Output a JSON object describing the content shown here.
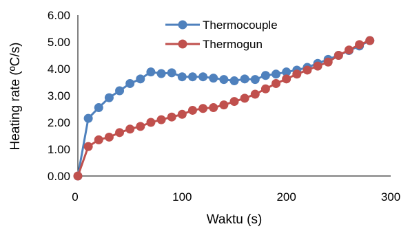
{
  "chart_data": {
    "type": "line",
    "title": "",
    "xlabel": "Waktu (s)",
    "ylabel": "Heating rate (ºC/s)",
    "xlim": [
      0,
      300
    ],
    "ylim": [
      0,
      6
    ],
    "x_ticks": [
      0,
      100,
      200,
      300
    ],
    "x_tick_labels": [
      "0",
      "100",
      "200",
      "300"
    ],
    "y_ticks": [
      0,
      1,
      2,
      3,
      4,
      5,
      6
    ],
    "y_tick_labels": [
      "0.00",
      "1.00",
      "2.00",
      "3.00",
      "4.00",
      "5.00",
      "6.00"
    ],
    "grid": false,
    "legend_position": "top-center",
    "series": [
      {
        "name": "Thermocouple",
        "color": "#4f81bd",
        "x": [
          0,
          10,
          20,
          30,
          40,
          50,
          60,
          70,
          80,
          90,
          100,
          110,
          120,
          130,
          140,
          150,
          160,
          170,
          180,
          190,
          200,
          210,
          220,
          230,
          240,
          250,
          260,
          270,
          280
        ],
        "y": [
          0.0,
          2.15,
          2.55,
          2.92,
          3.18,
          3.45,
          3.62,
          3.88,
          3.82,
          3.85,
          3.7,
          3.7,
          3.7,
          3.65,
          3.6,
          3.55,
          3.62,
          3.6,
          3.75,
          3.8,
          3.88,
          3.95,
          4.05,
          4.2,
          4.35,
          4.5,
          4.68,
          4.85,
          5.05
        ]
      },
      {
        "name": "Thermogun",
        "color": "#c0504d",
        "x": [
          0,
          10,
          20,
          30,
          40,
          50,
          60,
          70,
          80,
          90,
          100,
          110,
          120,
          130,
          140,
          150,
          160,
          170,
          180,
          190,
          200,
          210,
          220,
          230,
          240,
          250,
          260,
          270,
          280
        ],
        "y": [
          0.0,
          1.1,
          1.35,
          1.45,
          1.62,
          1.75,
          1.85,
          2.0,
          2.1,
          2.2,
          2.3,
          2.45,
          2.52,
          2.55,
          2.65,
          2.78,
          2.9,
          3.05,
          3.25,
          3.45,
          3.62,
          3.8,
          3.95,
          4.1,
          4.25,
          4.5,
          4.7,
          4.9,
          5.05
        ]
      }
    ]
  }
}
